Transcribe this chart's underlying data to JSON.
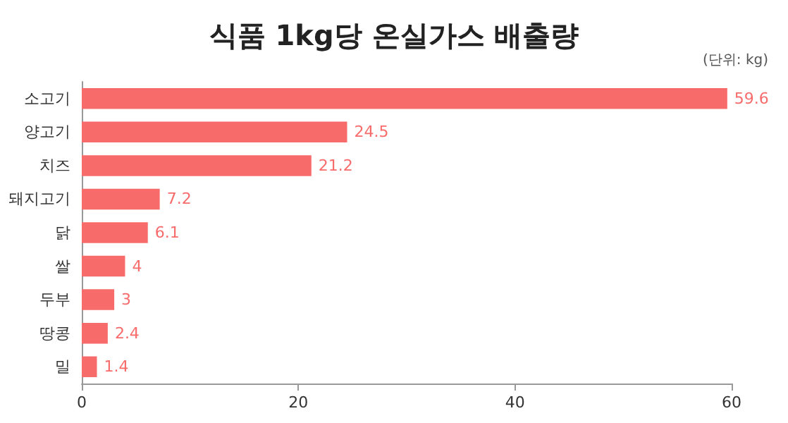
{
  "chart_data": {
    "type": "bar",
    "orientation": "horizontal",
    "title": "식품 1kg당 온실가스 배출량",
    "annotations": [
      "(단위: kg)"
    ],
    "categories": [
      "소고기",
      "양고기",
      "치즈",
      "돼지고기",
      "닭",
      "쌀",
      "두부",
      "땅콩",
      "밀"
    ],
    "values": [
      59.6,
      24.5,
      21.2,
      7.2,
      6.1,
      4,
      3,
      2.4,
      1.4
    ],
    "color": "#f86b6b",
    "xlim": [
      0,
      60
    ],
    "xticks": [
      0,
      20,
      40,
      60
    ],
    "data_labels": true
  }
}
